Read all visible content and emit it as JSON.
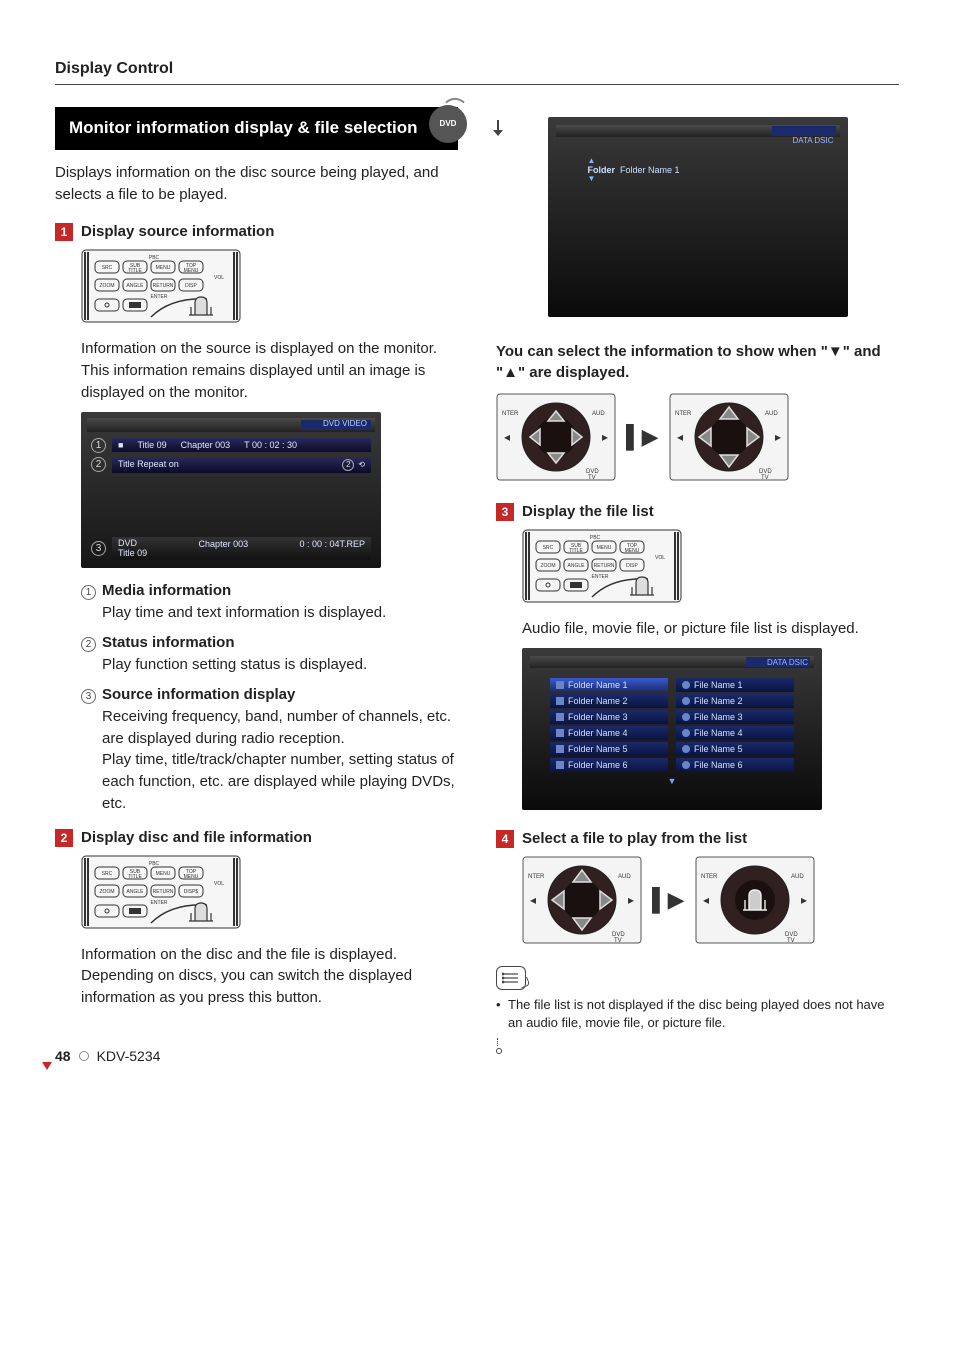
{
  "page": {
    "header": "Display Control",
    "number": "48",
    "model": "KDV-5234"
  },
  "section": {
    "title": "Monitor information display & file selection",
    "badge": "DVD",
    "lead": "Displays information on the disc source being played, and selects a file to be played."
  },
  "step1": {
    "num": "1",
    "title": "Display source information",
    "body1": "Information on the source is displayed on the monitor.",
    "body2": "This information remains displayed until an image is displayed on the monitor."
  },
  "screen1": {
    "topLabel": "DVD VIDEO",
    "row1_a": "Title  09",
    "row1_b": "Chapter  003",
    "row1_c": "T   00 : 02 : 30",
    "row2": "Title Repeat on",
    "bottom_a": "DVD",
    "bottom_b": "Title   09",
    "bottom_c": "Chapter 003",
    "bottom_d": "0 : 00 : 04T.REP"
  },
  "defs": {
    "d1t": "Media information",
    "d1b": "Play time and text information is displayed.",
    "d2t": "Status information",
    "d2b": "Play function setting status is displayed.",
    "d3t": "Source information display",
    "d3b": "Receiving frequency, band, number of channels, etc. are displayed during radio reception.",
    "d3c": "Play time, title/track/chapter number, setting status of  each function, etc. are displayed while playing DVDs, etc."
  },
  "step2": {
    "num": "2",
    "title": "Display disc and file information",
    "body": "Information on the disc and the file is displayed. Depending on discs, you can switch the displayed information as you press this button."
  },
  "folderScreen": {
    "tag": "DATA DSIC",
    "label": "Folder",
    "value": "Folder Name 1"
  },
  "note1": "You can select the information to show when \"▼\" and \"▲\" are displayed.",
  "step3": {
    "num": "3",
    "title": "Display the file list",
    "body": "Audio file, movie file, or picture file list is displayed."
  },
  "fileList": {
    "tag": "DATA DSIC",
    "folders": [
      "Folder Name 1",
      "Folder Name 2",
      "Folder Name 3",
      "Folder Name 4",
      "Folder Name 5",
      "Folder Name 6"
    ],
    "files": [
      "File Name 1",
      "File Name 2",
      "File Name 3",
      "File Name 4",
      "File Name 5",
      "File Name 6"
    ]
  },
  "step4": {
    "num": "4",
    "title": "Select a file to play from the list"
  },
  "footnote": "The file list is not displayed if the disc being played does not have an audio file, movie file, or picture file.",
  "remote": {
    "buttons_top": [
      "SRC",
      "SUB TITLE",
      "MENU",
      "TOP MENU"
    ],
    "buttons_mid": [
      "ZOOM",
      "ANGLE",
      "RETURN",
      "DISP"
    ],
    "label_pbc": "PBC",
    "label_vol": "VOL",
    "label_enter": "ENTER"
  },
  "dpad": {
    "label_top": "NTER",
    "label_right": "AUD",
    "label_bottom": "DVD TV"
  },
  "colors": {
    "accent": "#c62828",
    "screenBlue": "#1a2a6b",
    "textLight": "#cfe0ff"
  }
}
